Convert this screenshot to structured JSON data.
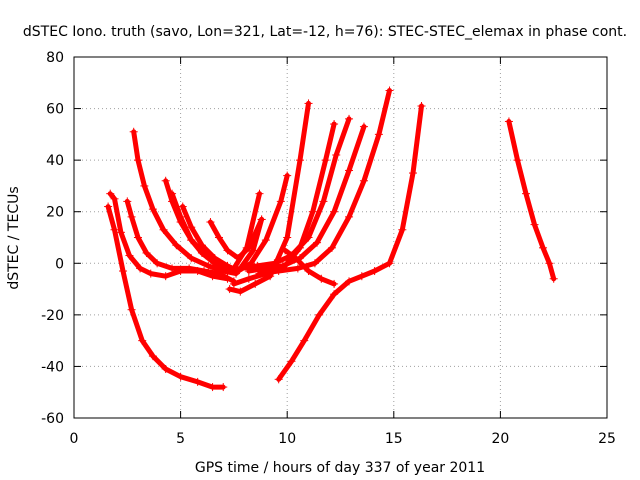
{
  "chart_data": {
    "type": "scatter",
    "title": "dSTEC Iono. truth (savo, Lon=321, Lat=-12, h=76): STEC-STEC_elemax in phase cont.",
    "xlabel": "GPS time / hours of day 337 of year 2011",
    "ylabel": "dSTEC  / TECUs",
    "xlim": [
      0,
      25
    ],
    "ylim": [
      -60,
      80
    ],
    "xticks": [
      0,
      5,
      10,
      15,
      20,
      25
    ],
    "yticks": [
      -60,
      -40,
      -20,
      0,
      20,
      40,
      60,
      80
    ],
    "grid": true,
    "color": "#ff0000",
    "marker": "plus",
    "series": [
      {
        "x": [
          1.6,
          1.9,
          2.3,
          2.7,
          3.2,
          3.7,
          4.3,
          5.0,
          5.8,
          6.5,
          7.0
        ],
        "y": [
          22,
          13,
          -3,
          -18,
          -30,
          -36,
          -41,
          -44,
          -46,
          -48,
          -48
        ]
      },
      {
        "x": [
          1.7,
          1.9,
          2.2,
          2.6,
          3.1,
          3.6,
          4.3,
          5.0,
          5.8,
          6.5,
          7.2
        ],
        "y": [
          27,
          25,
          12,
          3,
          -2,
          -4,
          -5,
          -3,
          -3,
          -5,
          -6
        ]
      },
      {
        "x": [
          2.5,
          2.7,
          3.0,
          3.4,
          3.9,
          4.6,
          5.4,
          6.1,
          6.8,
          7.5
        ],
        "y": [
          24,
          18,
          10,
          4,
          0,
          -2,
          -2,
          -3,
          -4,
          -7
        ]
      },
      {
        "x": [
          2.8,
          3.0,
          3.3,
          3.7,
          4.2,
          4.8,
          5.5,
          6.3,
          7.0,
          7.6
        ],
        "y": [
          51,
          40,
          30,
          21,
          13,
          7,
          2,
          -1,
          -3,
          -4
        ]
      },
      {
        "x": [
          4.3,
          4.6,
          5.0,
          5.5,
          6.0,
          6.6,
          7.2,
          7.8,
          8.4,
          8.8
        ],
        "y": [
          32,
          24,
          16,
          9,
          4,
          0,
          -3,
          -2,
          5,
          17
        ]
      },
      {
        "x": [
          4.6,
          5.0,
          5.5,
          6.2,
          6.9,
          7.5,
          8.1,
          8.7
        ],
        "y": [
          27,
          18,
          9,
          3,
          -1,
          -2,
          6,
          27
        ]
      },
      {
        "x": [
          5.1,
          5.5,
          6.0,
          6.6,
          7.2,
          7.7,
          8.3,
          9.0,
          9.7,
          10.0
        ],
        "y": [
          22,
          14,
          7,
          2,
          -1,
          -3,
          0,
          9,
          24,
          34
        ]
      },
      {
        "x": [
          6.4,
          6.8,
          7.2,
          7.7,
          8.2,
          8.8
        ],
        "y": [
          16,
          10,
          5,
          2,
          6,
          17
        ]
      },
      {
        "x": [
          7.3,
          7.8,
          8.5,
          9.2,
          10.0,
          10.6,
          11.0
        ],
        "y": [
          -10,
          -11,
          -8,
          -5,
          10,
          40,
          62
        ]
      },
      {
        "x": [
          7.5,
          8.2,
          9.0,
          9.8,
          10.6,
          11.2,
          11.8,
          12.2
        ],
        "y": [
          -8,
          -6,
          -4,
          -2,
          6,
          20,
          40,
          54
        ]
      },
      {
        "x": [
          7.8,
          8.6,
          9.4,
          10.2,
          11.0,
          11.7,
          12.3,
          12.9
        ],
        "y": [
          -2,
          -1,
          0,
          3,
          10,
          24,
          42,
          56
        ]
      },
      {
        "x": [
          8.2,
          9.0,
          9.8,
          10.6,
          11.4,
          12.2,
          12.9,
          13.6
        ],
        "y": [
          -3,
          -2,
          -1,
          2,
          8,
          20,
          36,
          53
        ]
      },
      {
        "x": [
          8.7,
          9.6,
          10.5,
          11.3,
          12.1,
          12.9,
          13.6,
          14.3,
          14.8
        ],
        "y": [
          -4,
          -3,
          -2,
          0,
          6,
          18,
          32,
          50,
          67
        ]
      },
      {
        "x": [
          9.9,
          10.4,
          11.0,
          11.6,
          12.2
        ],
        "y": [
          5,
          2,
          -3,
          -6,
          -8
        ]
      },
      {
        "x": [
          9.6,
          10.2,
          10.8,
          11.5,
          12.2,
          12.9,
          13.5,
          14.1,
          14.8,
          15.4,
          15.9,
          16.3
        ],
        "y": [
          -45,
          -38,
          -30,
          -20,
          -12,
          -7,
          -5,
          -3,
          0,
          13,
          35,
          61
        ]
      },
      {
        "x": [
          20.4,
          20.8,
          21.2,
          21.6,
          22.0,
          22.3,
          22.5
        ],
        "y": [
          55,
          40,
          27,
          15,
          6,
          0,
          -6
        ]
      }
    ]
  }
}
